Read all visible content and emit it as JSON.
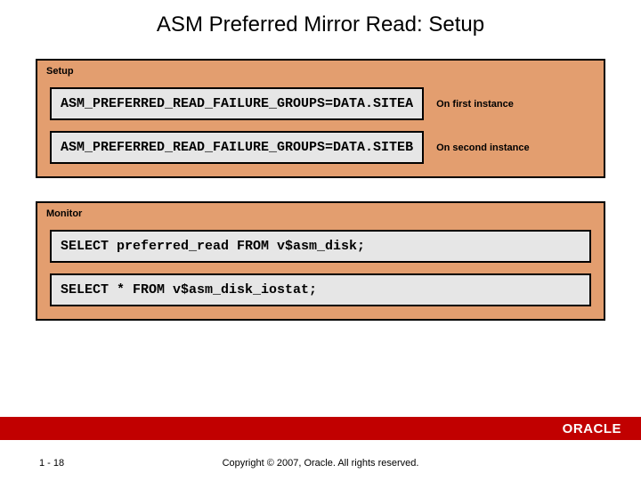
{
  "title": "ASM Preferred Mirror Read: Setup",
  "setup": {
    "label": "Setup",
    "rows": [
      {
        "code": "ASM_PREFERRED_READ_FAILURE_GROUPS=DATA.SITEA",
        "note": "On first instance"
      },
      {
        "code": "ASM_PREFERRED_READ_FAILURE_GROUPS=DATA.SITEB",
        "note": "On second instance"
      }
    ]
  },
  "monitor": {
    "label": "Monitor",
    "rows": [
      {
        "code": "SELECT preferred_read FROM v$asm_disk;"
      },
      {
        "code": "SELECT * FROM v$asm_disk_iostat;"
      }
    ]
  },
  "footer": {
    "page": "1 - 18",
    "copyright": "Copyright © 2007, Oracle. All rights reserved.",
    "logo": "ORACLE"
  },
  "colors": {
    "panel_bg": "#e39e6f",
    "code_bg": "#e6e6e6",
    "bar_bg": "#c10000",
    "border": "#000000"
  }
}
